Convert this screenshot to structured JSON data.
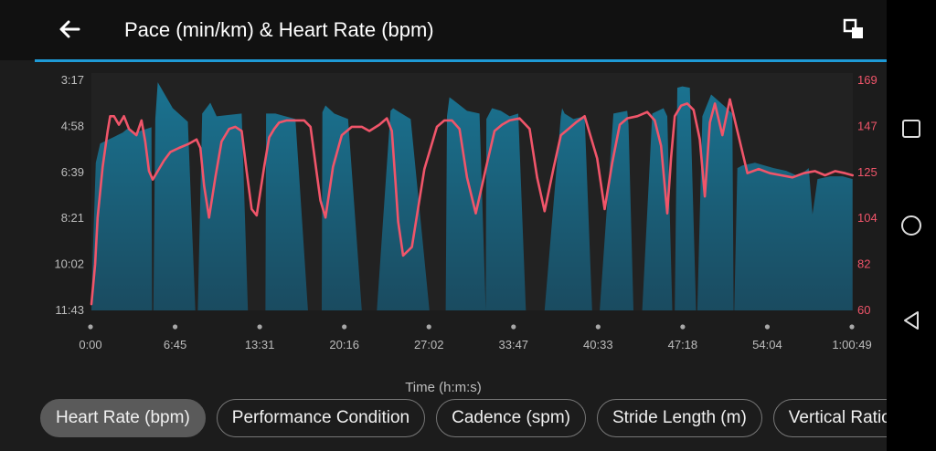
{
  "header": {
    "title": "Pace (min/km) & Heart Rate (bpm)",
    "back_icon": "arrow-left-icon",
    "fullscreen_icon": "fullscreen-toggle-icon",
    "accent_color": "#1e9ad6"
  },
  "chart_data": {
    "type": "area+line",
    "title": "Pace (min/km) & Heart Rate (bpm)",
    "xlabel": "Time (h:m:s)",
    "x_ticks": [
      "0:00",
      "6:45",
      "13:31",
      "20:16",
      "27:02",
      "33:47",
      "40:33",
      "47:18",
      "54:04",
      "1:00:49"
    ],
    "y_left_ticks": [
      "3:17",
      "4:58",
      "6:39",
      "8:21",
      "10:02",
      "11:43"
    ],
    "y_right_ticks": [
      "169",
      "147",
      "125",
      "104",
      "82",
      "60"
    ],
    "x_range_minutes": [
      0,
      60.82
    ],
    "pace_axis_min_per_km": [
      3.28,
      11.72
    ],
    "hr_range_bpm": [
      60,
      169
    ],
    "series": [
      {
        "name": "Pace",
        "color": "#1d6f8a",
        "x_minutes": [
          0.0,
          0.1,
          0.35,
          0.7,
          2.5,
          2.9,
          3.5,
          4.8,
          4.85,
          4.95,
          5.1,
          5.3,
          6.5,
          7.7,
          8.3,
          8.5,
          8.85,
          9.5,
          10.0,
          12.0,
          12.5,
          13.9,
          13.95,
          14.7,
          16.3,
          17.3,
          18.4,
          18.45,
          18.7,
          19.4,
          20.5,
          21.6,
          22.8,
          23.9,
          24.1,
          24.6,
          25.5,
          27.0,
          28.3,
          28.4,
          28.6,
          28.9,
          30.0,
          31.0,
          31.5,
          31.55,
          32.0,
          32.7,
          33.4,
          34.1,
          34.7,
          36.2,
          37.5,
          37.6,
          37.8,
          38.5,
          39.4,
          40.0,
          40.6,
          41.7,
          42.8,
          42.9,
          43.3,
          44.0,
          44.8,
          45.7,
          46.0,
          46.4,
          46.6,
          46.8,
          47.2,
          47.8,
          48.3,
          48.4,
          48.8,
          49.5,
          50.5,
          51.2,
          51.3,
          51.35,
          51.6,
          52.0,
          53.0,
          54.5,
          55.5,
          56.5,
          57.3,
          57.6,
          58.0,
          59.0,
          60.0,
          60.8
        ],
        "pace_min_per_km": [
          11.72,
          9.8,
          6.3,
          5.6,
          5.2,
          5.05,
          5.2,
          5.0,
          11.72,
          11.72,
          4.7,
          3.35,
          4.3,
          4.8,
          11.72,
          11.72,
          4.5,
          4.1,
          4.6,
          4.5,
          11.72,
          11.72,
          4.5,
          4.5,
          4.7,
          11.72,
          11.72,
          4.45,
          4.2,
          4.5,
          4.7,
          11.72,
          11.72,
          4.4,
          4.3,
          4.45,
          4.7,
          11.72,
          11.72,
          4.6,
          3.9,
          4.0,
          4.4,
          4.5,
          11.72,
          4.7,
          4.3,
          4.4,
          4.6,
          4.5,
          11.72,
          11.72,
          4.6,
          4.3,
          4.5,
          4.7,
          4.6,
          11.72,
          11.72,
          4.5,
          4.4,
          4.9,
          11.72,
          11.72,
          4.5,
          4.3,
          4.6,
          11.72,
          11.72,
          3.55,
          3.5,
          3.55,
          11.72,
          11.72,
          4.6,
          3.8,
          4.2,
          4.5,
          11.72,
          11.72,
          6.5,
          6.4,
          6.3,
          6.5,
          6.6,
          6.8,
          6.5,
          8.2,
          6.9,
          6.8,
          6.8,
          6.9
        ]
      },
      {
        "name": "Heart Rate",
        "color": "#f0556a",
        "x_minutes": [
          0.0,
          0.3,
          0.5,
          0.9,
          1.3,
          1.5,
          1.8,
          2.2,
          2.6,
          3.0,
          3.6,
          4.0,
          4.3,
          4.6,
          4.9,
          5.3,
          5.8,
          6.3,
          7.0,
          7.8,
          8.4,
          8.7,
          9.0,
          9.4,
          9.9,
          10.4,
          11.0,
          11.5,
          12.0,
          12.4,
          12.8,
          13.2,
          13.8,
          14.2,
          14.6,
          15.0,
          15.6,
          16.3,
          17.0,
          17.5,
          18.0,
          18.3,
          18.7,
          19.3,
          20.0,
          20.8,
          21.6,
          22.2,
          23.0,
          23.6,
          24.0,
          24.3,
          24.5,
          24.9,
          25.6,
          26.6,
          27.6,
          28.2,
          28.8,
          29.4,
          30.0,
          30.7,
          31.5,
          32.2,
          32.8,
          33.4,
          34.2,
          35.0,
          35.6,
          36.2,
          36.9,
          37.5,
          38.1,
          38.7,
          39.4,
          40.4,
          41.0,
          41.6,
          42.2,
          42.8,
          43.6,
          44.4,
          45.0,
          45.5,
          46.0,
          46.3,
          46.6,
          47.1,
          47.6,
          48.1,
          48.6,
          49.0,
          49.4,
          49.8,
          50.4,
          51.0,
          51.6,
          52.4,
          53.3,
          54.2,
          55.1,
          56.0,
          56.9,
          57.8,
          58.6,
          59.4,
          60.2,
          60.8
        ],
        "bpm": [
          63,
          82,
          104,
          128,
          145,
          152,
          152,
          148,
          152,
          146,
          143,
          150,
          140,
          126,
          122,
          126,
          131,
          135,
          137,
          139,
          141,
          137,
          119,
          104,
          123,
          140,
          146,
          147,
          145,
          126,
          108,
          105,
          128,
          142,
          146,
          149,
          150,
          150,
          150,
          147,
          125,
          112,
          104,
          128,
          143,
          147,
          147,
          145,
          148,
          151,
          145,
          120,
          102,
          86,
          90,
          127,
          147,
          150,
          150,
          146,
          123,
          106,
          127,
          145,
          148,
          150,
          151,
          146,
          123,
          107,
          127,
          143,
          146,
          149,
          152,
          132,
          108,
          130,
          148,
          151,
          152,
          154,
          150,
          138,
          106,
          132,
          152,
          157,
          158,
          155,
          141,
          114,
          149,
          158,
          143,
          160,
          145,
          125,
          127,
          125,
          124,
          123,
          125,
          126,
          124,
          126,
          125,
          124
        ]
      }
    ]
  },
  "chips": [
    {
      "label": "Heart Rate (bpm)",
      "active": true
    },
    {
      "label": "Performance Condition",
      "active": false
    },
    {
      "label": "Cadence (spm)",
      "active": false
    },
    {
      "label": "Stride Length (m)",
      "active": false
    },
    {
      "label": "Vertical Ratio",
      "active": false
    }
  ],
  "system_nav": {
    "recents_icon": "square-recents-icon",
    "home_icon": "circle-home-icon",
    "back_icon": "triangle-back-icon"
  }
}
